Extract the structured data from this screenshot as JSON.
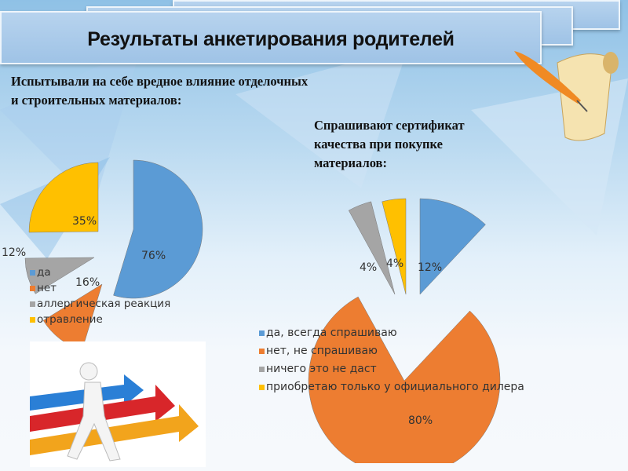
{
  "slide": {
    "title": "Результаты анкетирования родителей"
  },
  "colors": {
    "blue": "#5b9bd5",
    "orange": "#ed7d31",
    "gray": "#a5a5a5",
    "yellow": "#ffc000"
  },
  "chart_data": [
    {
      "type": "pie",
      "title": "Испытывали  на себе вредное влияние отделочных и строительных материалов:",
      "categories": [
        "да",
        "нет",
        "аллергическая реакция",
        "отравление"
      ],
      "values": [
        76,
        16,
        12,
        35
      ],
      "labels": [
        "76%",
        "16%",
        "12%",
        "35%"
      ],
      "legend": "bottom-left"
    },
    {
      "type": "pie",
      "title": "Спрашивают  сертификат качества при покупке материалов:",
      "categories": [
        "да, всегда спрашиваю",
        "нет, не спрашиваю",
        "ничего это не даст",
        "приобретаю только у официального дилера"
      ],
      "values": [
        12,
        80,
        4,
        4
      ],
      "labels": [
        "12%",
        "80%",
        "4%",
        "4%"
      ],
      "legend": "center-left"
    }
  ]
}
